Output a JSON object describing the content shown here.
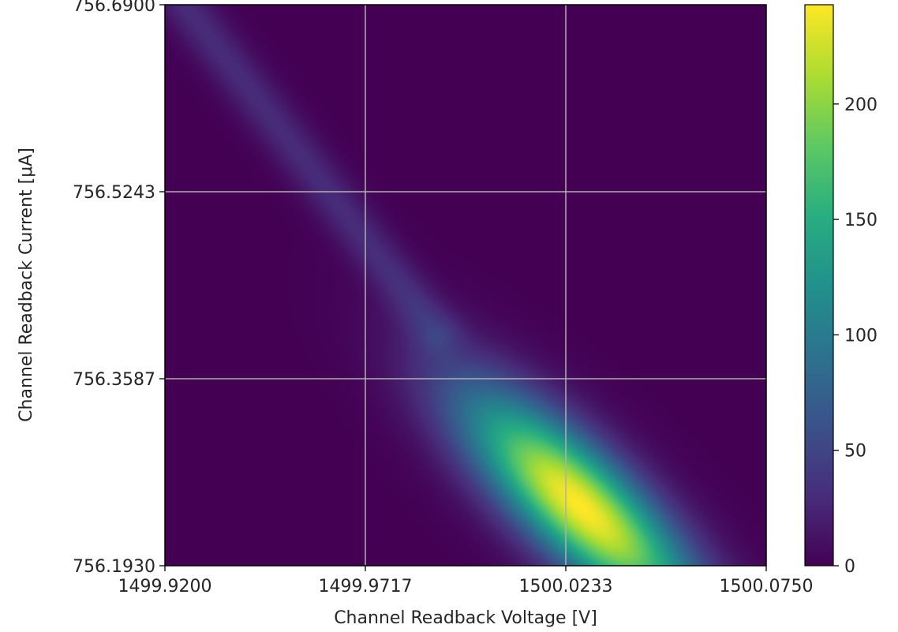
{
  "chart_data": {
    "type": "heatmap",
    "title": "",
    "xlabel": "Channel Readback Voltage [V]",
    "ylabel": "Channel Readback Current [μA]",
    "xlim": [
      1499.92,
      1500.075
    ],
    "ylim": [
      756.193,
      756.69
    ],
    "x_ticks": [
      "1499.9200",
      "1499.9717",
      "1500.0233",
      "1500.0750"
    ],
    "y_ticks": [
      "756.1930",
      "756.3587",
      "756.5243",
      "756.6900"
    ],
    "grid": true,
    "colormap": "viridis",
    "colorbar": {
      "range": [
        0,
        243
      ],
      "ticks": [
        "0",
        "50",
        "100",
        "150",
        "200"
      ]
    },
    "components": [
      {
        "name": "main-peak",
        "x_center": 1500.027,
        "y_center": 756.246,
        "peak": 243
      },
      {
        "name": "diagonal-tail",
        "x_start": 1499.925,
        "y_start": 756.69,
        "x_end": 1499.99,
        "y_end": 756.4,
        "level": 30
      }
    ]
  }
}
